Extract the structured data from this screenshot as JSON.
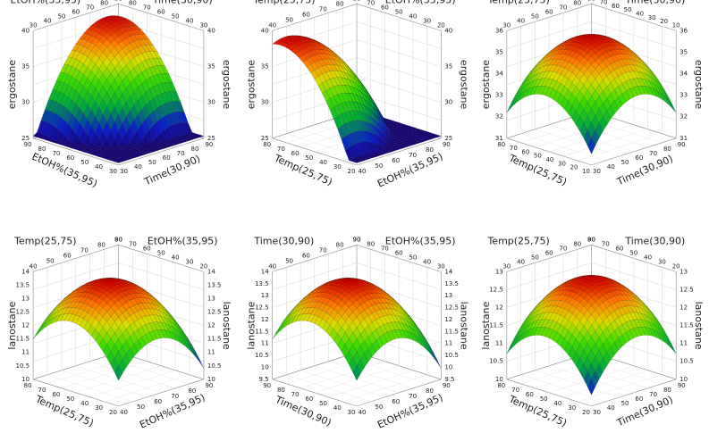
{
  "chart_data": [
    {
      "type": "surface",
      "response": "ergostane",
      "x": {
        "label": "Time(30,90)",
        "ticks": [
          "30",
          "40",
          "50",
          "60",
          "70",
          "80",
          "90"
        ],
        "range": [
          30,
          90
        ]
      },
      "y": {
        "label": "EtOH%(35,95)",
        "ticks": [
          "30",
          "40",
          "50",
          "60",
          "70",
          "80",
          "90"
        ],
        "range": [
          30,
          90
        ]
      },
      "z": {
        "label": "ergostane",
        "ticks": [
          "25",
          "30",
          "35",
          "40"
        ],
        "range": [
          25,
          42
        ]
      },
      "top_labels": [
        "EtOH%(35,95)",
        "Time(30,90)"
      ]
    },
    {
      "type": "surface",
      "response": "ergostane",
      "x": {
        "label": "EtOH%(35,95)",
        "ticks": [
          "40",
          "50",
          "60",
          "70",
          "80",
          "90"
        ],
        "range": [
          35,
          95
        ]
      },
      "y": {
        "label": "Temp(25,75)",
        "ticks": [
          "20",
          "30",
          "40",
          "50",
          "60",
          "70",
          "80"
        ],
        "range": [
          20,
          80
        ]
      },
      "z": {
        "label": "ergostane",
        "ticks": [
          "25",
          "30",
          "35",
          "40"
        ],
        "range": [
          25,
          42
        ]
      },
      "top_labels": [
        "Temp(25,75)",
        "EtOH%(35,95)"
      ]
    },
    {
      "type": "surface",
      "response": "ergostane",
      "x": {
        "label": "Time(30,90)",
        "ticks": [
          "30",
          "40",
          "50",
          "60",
          "70",
          "80",
          "90"
        ],
        "range": [
          30,
          90
        ]
      },
      "y": {
        "label": "Temp(25,75)",
        "ticks": [
          "10",
          "20",
          "30",
          "40",
          "50",
          "60",
          "70",
          "80"
        ],
        "range": [
          10,
          80
        ]
      },
      "z": {
        "label": "ergostane",
        "ticks": [
          "31",
          "32",
          "33",
          "34",
          "35",
          "36"
        ],
        "range": [
          31,
          36
        ]
      },
      "top_labels": [
        "Temp(25,75)",
        "Time(30,90)"
      ]
    },
    {
      "type": "surface",
      "response": "lanostane",
      "x": {
        "label": "EtOH%(35,95)",
        "ticks": [
          "40",
          "50",
          "60",
          "70",
          "80",
          "90"
        ],
        "range": [
          35,
          95
        ]
      },
      "y": {
        "label": "Temp(25,75)",
        "ticks": [
          "20",
          "30",
          "40",
          "50",
          "60",
          "70",
          "80"
        ],
        "range": [
          20,
          80
        ]
      },
      "z": {
        "label": "lanostane",
        "ticks": [
          "10",
          "10.5",
          "11",
          "11.5",
          "12",
          "12.5",
          "13",
          "13.5",
          "14"
        ],
        "range": [
          10,
          14
        ]
      },
      "top_labels": [
        "Temp(25,75)",
        "EtOH%(35,95)"
      ]
    },
    {
      "type": "surface",
      "response": "lanostane",
      "x": {
        "label": "EtOH%(35,95)",
        "ticks": [
          "40",
          "50",
          "60",
          "70",
          "80",
          "90"
        ],
        "range": [
          35,
          95
        ]
      },
      "y": {
        "label": "Time(30,90)",
        "ticks": [
          "30",
          "40",
          "50",
          "60",
          "70",
          "80",
          "90"
        ],
        "range": [
          30,
          90
        ]
      },
      "z": {
        "label": "lanostane",
        "ticks": [
          "9.5",
          "10",
          "10.5",
          "11",
          "11.5",
          "12",
          "12.5",
          "13",
          "13.5",
          "14"
        ],
        "range": [
          9.5,
          14
        ]
      },
      "top_labels": [
        "Time(30,90)",
        "EtOH%(35,95)"
      ]
    },
    {
      "type": "surface",
      "response": "lanostane",
      "x": {
        "label": "Time(30,90)",
        "ticks": [
          "30",
          "40",
          "50",
          "60",
          "70",
          "80",
          "90"
        ],
        "range": [
          30,
          90
        ]
      },
      "y": {
        "label": "Temp(25,75)",
        "ticks": [
          "20",
          "30",
          "40",
          "50",
          "60",
          "70",
          "80"
        ],
        "range": [
          20,
          80
        ]
      },
      "z": {
        "label": "lanostane",
        "ticks": [
          "10",
          "10.5",
          "11",
          "11.5",
          "12",
          "12.5",
          "13"
        ],
        "range": [
          10,
          13
        ]
      },
      "top_labels": [
        "Temp(25,75)",
        "Time(30,90)"
      ]
    }
  ]
}
